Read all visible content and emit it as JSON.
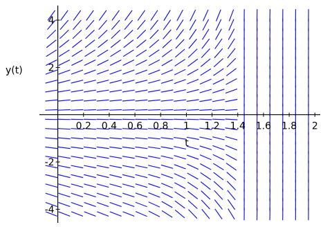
{
  "chart_data": {
    "type": "scatter",
    "subtype": "direction-field",
    "title": "",
    "xlabel": "t",
    "ylabel": "y(t)",
    "xlim": [
      -0.1,
      2.02
    ],
    "ylim": [
      -4.4,
      4.5
    ],
    "x_ticks": [
      0.2,
      0.4,
      0.6,
      0.8,
      1,
      1.2,
      1.4,
      1.6,
      1.8,
      2
    ],
    "x_tick_labels": [
      "0.2",
      "0.4",
      "0.6",
      "0.8",
      "1",
      "1.2",
      "1.4",
      "1.6",
      "1.8",
      "2"
    ],
    "y_ticks": [
      -4,
      -2,
      2,
      4
    ],
    "y_tick_labels": [
      "-4",
      "-2",
      "2",
      "4"
    ],
    "grid": false,
    "line_color": "#1a1aee",
    "axis_color": "#000000",
    "sample_t": [
      -0.05,
      0.05,
      0.15,
      0.25,
      0.35,
      0.45,
      0.55,
      0.65,
      0.75,
      0.85,
      0.95,
      1.05,
      1.15,
      1.25,
      1.35,
      1.45,
      1.55,
      1.65,
      1.75,
      1.85,
      1.95
    ],
    "sample_y": [
      -4.2,
      -3.8,
      -3.4,
      -3.0,
      -2.6,
      -2.2,
      -1.8,
      -1.4,
      -1.0,
      -0.6,
      -0.2,
      0.2,
      0.6,
      1.0,
      1.4,
      1.8,
      2.2,
      2.6,
      3.0,
      3.4,
      3.8,
      4.2
    ]
  }
}
